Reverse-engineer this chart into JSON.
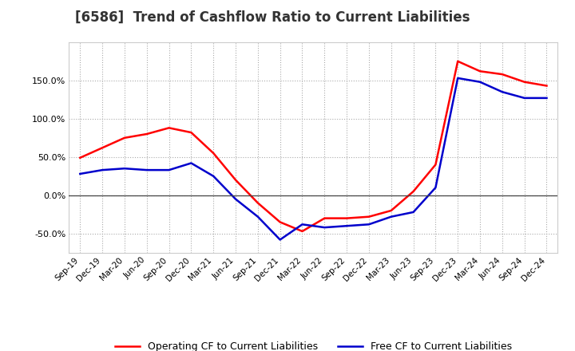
{
  "title": "[6586]  Trend of Cashflow Ratio to Current Liabilities",
  "x_labels": [
    "Sep-19",
    "Dec-19",
    "Mar-20",
    "Jun-20",
    "Sep-20",
    "Dec-20",
    "Mar-21",
    "Jun-21",
    "Sep-21",
    "Dec-21",
    "Mar-22",
    "Jun-22",
    "Sep-22",
    "Dec-22",
    "Mar-23",
    "Jun-23",
    "Sep-23",
    "Dec-23",
    "Mar-24",
    "Jun-24",
    "Sep-24",
    "Dec-24"
  ],
  "operating_cf": [
    49,
    62,
    75,
    80,
    88,
    82,
    55,
    20,
    -10,
    -35,
    -47,
    -30,
    -30,
    -28,
    -20,
    5,
    40,
    175,
    162,
    158,
    148,
    143
  ],
  "free_cf": [
    28,
    33,
    35,
    33,
    33,
    42,
    25,
    -5,
    -28,
    -58,
    -38,
    -42,
    -40,
    -38,
    -28,
    -22,
    10,
    153,
    148,
    135,
    127,
    127
  ],
  "operating_color": "#ff0000",
  "free_color": "#0000cc",
  "ylim": [
    -75,
    200
  ],
  "yticks": [
    -50.0,
    0.0,
    50.0,
    100.0,
    150.0
  ],
  "grid_color": "#aaaaaa",
  "background_color": "#ffffff",
  "legend_op": "Operating CF to Current Liabilities",
  "legend_free": "Free CF to Current Liabilities"
}
